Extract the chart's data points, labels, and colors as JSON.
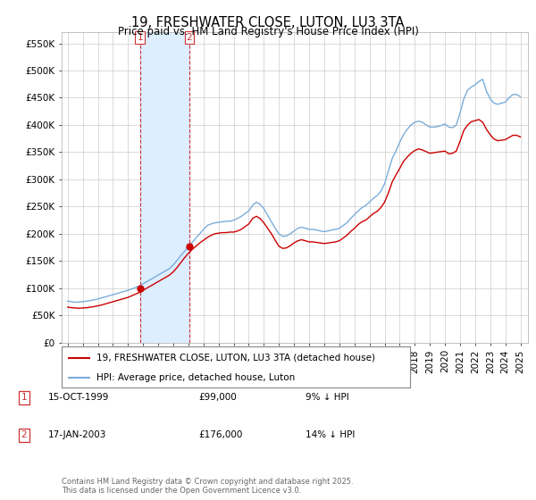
{
  "title": "19, FRESHWATER CLOSE, LUTON, LU3 3TA",
  "subtitle": "Price paid vs. HM Land Registry's House Price Index (HPI)",
  "ylim": [
    0,
    570000
  ],
  "yticks": [
    0,
    50000,
    100000,
    150000,
    200000,
    250000,
    300000,
    350000,
    400000,
    450000,
    500000,
    550000
  ],
  "ytick_labels": [
    "£0",
    "£50K",
    "£100K",
    "£150K",
    "£200K",
    "£250K",
    "£300K",
    "£350K",
    "£400K",
    "£450K",
    "£500K",
    "£550K"
  ],
  "xlim_start": 1994.6,
  "xlim_end": 2025.5,
  "xticks": [
    1995,
    1996,
    1997,
    1998,
    1999,
    2000,
    2001,
    2002,
    2003,
    2004,
    2005,
    2006,
    2007,
    2008,
    2009,
    2010,
    2011,
    2012,
    2013,
    2014,
    2015,
    2016,
    2017,
    2018,
    2019,
    2020,
    2021,
    2022,
    2023,
    2024,
    2025
  ],
  "sale1_x": 1999.79,
  "sale1_y": 99000,
  "sale1_label": "1",
  "sale2_x": 2003.05,
  "sale2_y": 176000,
  "sale2_label": "2",
  "vline1_x": 1999.79,
  "vline2_x": 2003.05,
  "shade_x1": 1999.79,
  "shade_x2": 2003.05,
  "red_line_color": "#cc0000",
  "blue_line_color": "#7aadda",
  "shade_color": "#ddeeff",
  "vline_color": "#cc3333",
  "background_color": "#ffffff",
  "grid_color": "#cccccc",
  "legend1_label": "19, FRESHWATER CLOSE, LUTON, LU3 3TA (detached house)",
  "legend2_label": "HPI: Average price, detached house, Luton",
  "table_row1": [
    "1",
    "15-OCT-1999",
    "£99,000",
    "9% ↓ HPI"
  ],
  "table_row2": [
    "2",
    "17-JAN-2003",
    "£176,000",
    "14% ↓ HPI"
  ],
  "footer": "Contains HM Land Registry data © Crown copyright and database right 2025.\nThis data is licensed under the Open Government Licence v3.0.",
  "hpi_data": {
    "years": [
      1995.0,
      1995.25,
      1995.5,
      1995.75,
      1996.0,
      1996.25,
      1996.5,
      1996.75,
      1997.0,
      1997.25,
      1997.5,
      1997.75,
      1998.0,
      1998.25,
      1998.5,
      1998.75,
      1999.0,
      1999.25,
      1999.5,
      1999.75,
      2000.0,
      2000.25,
      2000.5,
      2000.75,
      2001.0,
      2001.25,
      2001.5,
      2001.75,
      2002.0,
      2002.25,
      2002.5,
      2002.75,
      2003.0,
      2003.25,
      2003.5,
      2003.75,
      2004.0,
      2004.25,
      2004.5,
      2004.75,
      2005.0,
      2005.25,
      2005.5,
      2005.75,
      2006.0,
      2006.25,
      2006.5,
      2006.75,
      2007.0,
      2007.25,
      2007.5,
      2007.75,
      2008.0,
      2008.25,
      2008.5,
      2008.75,
      2009.0,
      2009.25,
      2009.5,
      2009.75,
      2010.0,
      2010.25,
      2010.5,
      2010.75,
      2011.0,
      2011.25,
      2011.5,
      2011.75,
      2012.0,
      2012.25,
      2012.5,
      2012.75,
      2013.0,
      2013.25,
      2013.5,
      2013.75,
      2014.0,
      2014.25,
      2014.5,
      2014.75,
      2015.0,
      2015.25,
      2015.5,
      2015.75,
      2016.0,
      2016.25,
      2016.5,
      2016.75,
      2017.0,
      2017.25,
      2017.5,
      2017.75,
      2018.0,
      2018.25,
      2018.5,
      2018.75,
      2019.0,
      2019.25,
      2019.5,
      2019.75,
      2020.0,
      2020.25,
      2020.5,
      2020.75,
      2021.0,
      2021.25,
      2021.5,
      2021.75,
      2022.0,
      2022.25,
      2022.5,
      2022.75,
      2023.0,
      2023.25,
      2023.5,
      2023.75,
      2024.0,
      2024.25,
      2024.5,
      2024.75,
      2025.0
    ],
    "values": [
      76000,
      75000,
      74000,
      74500,
      75000,
      76000,
      77000,
      78500,
      80000,
      82000,
      84000,
      86000,
      88000,
      90000,
      92000,
      94000,
      96000,
      98500,
      101000,
      104000,
      108000,
      112000,
      116000,
      120000,
      124000,
      128000,
      132000,
      136000,
      143000,
      151000,
      160000,
      168000,
      176000,
      184000,
      192000,
      200000,
      208000,
      215000,
      218000,
      220000,
      221000,
      222000,
      223000,
      223000,
      225000,
      228000,
      232000,
      237000,
      242000,
      252000,
      258000,
      254000,
      246000,
      234000,
      222000,
      210000,
      200000,
      195000,
      196000,
      200000,
      205000,
      210000,
      212000,
      210000,
      208000,
      208000,
      207000,
      205000,
      204000,
      205000,
      207000,
      208000,
      210000,
      215000,
      220000,
      228000,
      235000,
      242000,
      248000,
      252000,
      258000,
      265000,
      270000,
      278000,
      292000,
      315000,
      338000,
      352000,
      368000,
      382000,
      392000,
      400000,
      405000,
      407000,
      405000,
      400000,
      396000,
      396000,
      397000,
      399000,
      402000,
      396000,
      395000,
      400000,
      422000,
      448000,
      464000,
      470000,
      474000,
      480000,
      484000,
      462000,
      448000,
      440000,
      438000,
      440000,
      442000,
      450000,
      456000,
      456000,
      452000
    ]
  },
  "price_data": {
    "years": [
      1995.0,
      1995.25,
      1995.5,
      1995.75,
      1996.0,
      1996.25,
      1996.5,
      1996.75,
      1997.0,
      1997.25,
      1997.5,
      1997.75,
      1998.0,
      1998.25,
      1998.5,
      1998.75,
      1999.0,
      1999.25,
      1999.5,
      1999.75,
      2000.0,
      2000.25,
      2000.5,
      2000.75,
      2001.0,
      2001.25,
      2001.5,
      2001.75,
      2002.0,
      2002.25,
      2002.5,
      2002.75,
      2003.0,
      2003.25,
      2003.5,
      2003.75,
      2004.0,
      2004.25,
      2004.5,
      2004.75,
      2005.0,
      2005.25,
      2005.5,
      2005.75,
      2006.0,
      2006.25,
      2006.5,
      2006.75,
      2007.0,
      2007.25,
      2007.5,
      2007.75,
      2008.0,
      2008.25,
      2008.5,
      2008.75,
      2009.0,
      2009.25,
      2009.5,
      2009.75,
      2010.0,
      2010.25,
      2010.5,
      2010.75,
      2011.0,
      2011.25,
      2011.5,
      2011.75,
      2012.0,
      2012.25,
      2012.5,
      2012.75,
      2013.0,
      2013.25,
      2013.5,
      2013.75,
      2014.0,
      2014.25,
      2014.5,
      2014.75,
      2015.0,
      2015.25,
      2015.5,
      2015.75,
      2016.0,
      2016.25,
      2016.5,
      2016.75,
      2017.0,
      2017.25,
      2017.5,
      2017.75,
      2018.0,
      2018.25,
      2018.5,
      2018.75,
      2019.0,
      2019.25,
      2019.5,
      2019.75,
      2020.0,
      2020.25,
      2020.5,
      2020.75,
      2021.0,
      2021.25,
      2021.5,
      2021.75,
      2022.0,
      2022.25,
      2022.5,
      2022.75,
      2023.0,
      2023.25,
      2023.5,
      2023.75,
      2024.0,
      2024.25,
      2024.5,
      2024.75,
      2025.0
    ],
    "values": [
      65000,
      64000,
      63500,
      63000,
      63500,
      64000,
      65000,
      66000,
      67500,
      69000,
      71000,
      73000,
      75000,
      77000,
      79000,
      81000,
      83000,
      86000,
      89000,
      92000,
      96000,
      100000,
      104000,
      108000,
      112000,
      116000,
      120000,
      124000,
      130000,
      138000,
      147000,
      156000,
      164000,
      171000,
      177000,
      183000,
      188000,
      193000,
      197000,
      200000,
      201000,
      202000,
      202000,
      203000,
      203000,
      205000,
      208000,
      213000,
      218000,
      228000,
      232000,
      228000,
      220000,
      210000,
      200000,
      188000,
      177000,
      173000,
      174000,
      178000,
      183000,
      187000,
      189000,
      187000,
      185000,
      185000,
      184000,
      183000,
      182000,
      183000,
      184000,
      185000,
      187000,
      192000,
      197000,
      204000,
      210000,
      217000,
      222000,
      225000,
      231000,
      237000,
      241000,
      248000,
      258000,
      275000,
      295000,
      308000,
      320000,
      333000,
      341000,
      348000,
      353000,
      356000,
      354000,
      351000,
      348000,
      349000,
      350000,
      351000,
      352000,
      347000,
      348000,
      352000,
      370000,
      390000,
      400000,
      406000,
      408000,
      410000,
      405000,
      392000,
      382000,
      374000,
      371000,
      372000,
      373000,
      377000,
      381000,
      381000,
      378000
    ]
  }
}
